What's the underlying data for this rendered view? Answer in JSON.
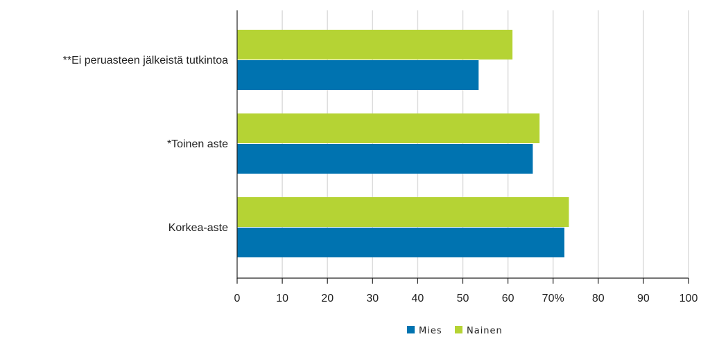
{
  "chart_data": {
    "type": "bar",
    "orientation": "horizontal",
    "categories": [
      "**Ei peruasteen jälkeistä tutkintoa",
      "*Toinen aste",
      "Korkea-aste"
    ],
    "series": [
      {
        "name": "Nainen",
        "color": "#b5d334",
        "values": [
          61,
          67,
          73.5
        ]
      },
      {
        "name": "Mies",
        "color": "#0073b0",
        "values": [
          53.5,
          65.5,
          72.5
        ]
      }
    ],
    "x_ticks": [
      "0",
      "10",
      "20",
      "30",
      "40",
      "50",
      "60",
      "70%",
      "80",
      "90",
      "100"
    ],
    "xlim": [
      0,
      100
    ],
    "grid": true,
    "legend": {
      "position": "bottom-right",
      "order": [
        "Mies",
        "Nainen"
      ]
    },
    "title": "",
    "xlabel": "",
    "ylabel": ""
  }
}
